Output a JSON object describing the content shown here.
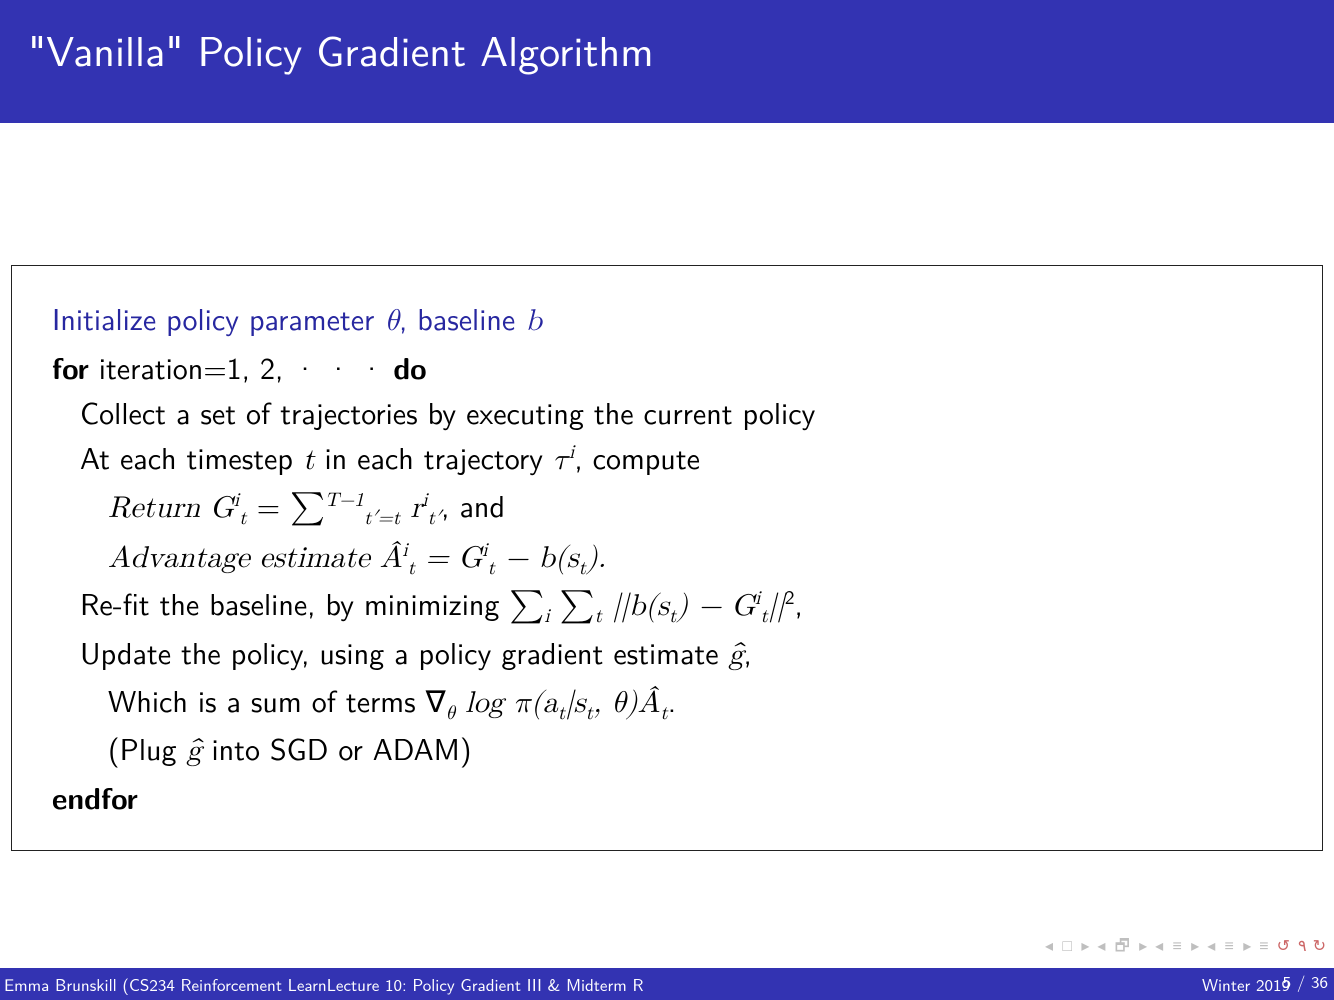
{
  "colors": {
    "title_bg": "#3333b2",
    "title_fg": "#ffffff",
    "body_bg": "#ffffff",
    "text": "#000000",
    "accent_blue": "#2727a0",
    "footer_bg": "#3333b2",
    "footer_fg": "#ffffff",
    "nav_gray": "#bfbfbf",
    "nav_red": "#cc6666",
    "box_border": "#222222"
  },
  "title": "\"Vanilla\" Policy Gradient Algorithm",
  "algorithm": {
    "line1_prefix": "Initialize policy parameter ",
    "line1_mid": ", baseline ",
    "theta": "θ",
    "b": "b",
    "for_word": "for",
    "for_rest": " iteration=1, 2, · · ·  ",
    "do_word": "do",
    "collect": "Collect a set of trajectories by executing the current policy",
    "at_each_a": "At each timestep ",
    "t": "t",
    "at_each_b": " in each trajectory ",
    "tau_i": "τ",
    "at_each_c": ", compute",
    "return_word": "Return",
    "return_rest_a": " G",
    "return_eq": " = ",
    "sum": "∑",
    "return_limits_top": "T−1",
    "return_limits_bot": "t′=t",
    "r": " r",
    "return_and": ", and",
    "adv_word": "Advantage estimate",
    "adv_A": " Â",
    "adv_eq": " = G",
    "adv_minus": " − b(s",
    "adv_close": ").",
    "refit_a": "Re-fit the baseline, by minimizing ",
    "refit_norm_a": " ||b(s",
    "refit_norm_b": ") − G",
    "refit_norm_c": "||",
    "refit_comma": ",",
    "update_a": "Update the policy, using a policy gradient estimate ",
    "ghat": "ĝ",
    "update_comma": ",",
    "which_a": "Which is a sum of terms ∇",
    "which_b": " log π(a",
    "which_c": "|s",
    "which_d": ", θ)Â",
    "which_e": ".",
    "plug": "(Plug ",
    "plug_b": " into SGD or ADAM)",
    "endfor": "endfor"
  },
  "footer": {
    "author": "Emma Brunskill (CS234 Reinforcement Learn",
    "lecture": "Lecture 10: Policy Gradient III & Midterm R",
    "term": "Winter 2019",
    "page": "5 / 36"
  }
}
